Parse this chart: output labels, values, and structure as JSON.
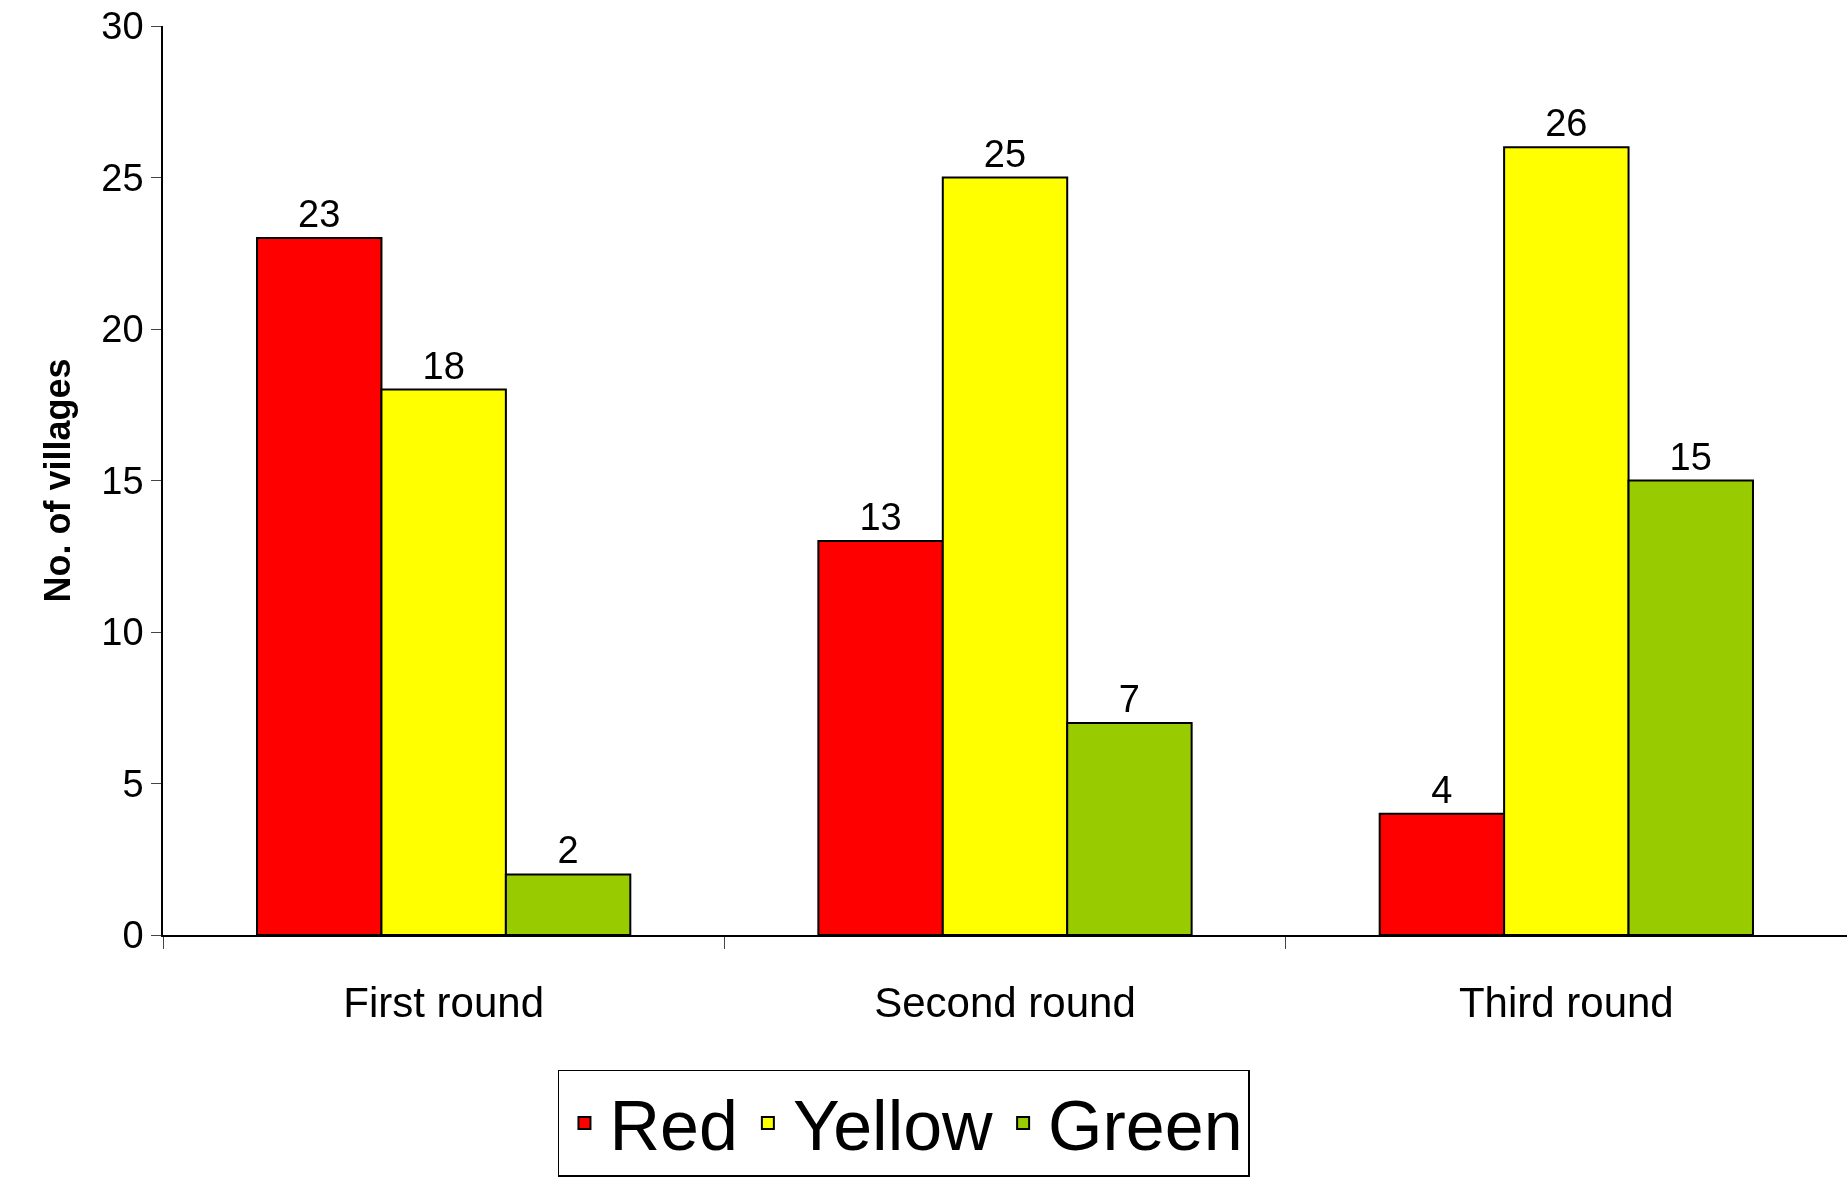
{
  "chart_data": {
    "type": "bar",
    "ylabel": "No. of villages",
    "categories": [
      "First round",
      "Second round",
      "Third round"
    ],
    "series": [
      {
        "name": "Red",
        "color": "#ff0000",
        "values": [
          23,
          13,
          4
        ]
      },
      {
        "name": "Yellow",
        "color": "#ffff00",
        "values": [
          18,
          25,
          26
        ]
      },
      {
        "name": "Green",
        "color": "#99cc00",
        "values": [
          2,
          7,
          15
        ]
      }
    ],
    "ylim": [
      0,
      30
    ],
    "yticks": [
      0,
      5,
      10,
      15,
      20,
      25,
      30
    ],
    "grid": false,
    "legend": "bottom",
    "data_labels": true
  }
}
